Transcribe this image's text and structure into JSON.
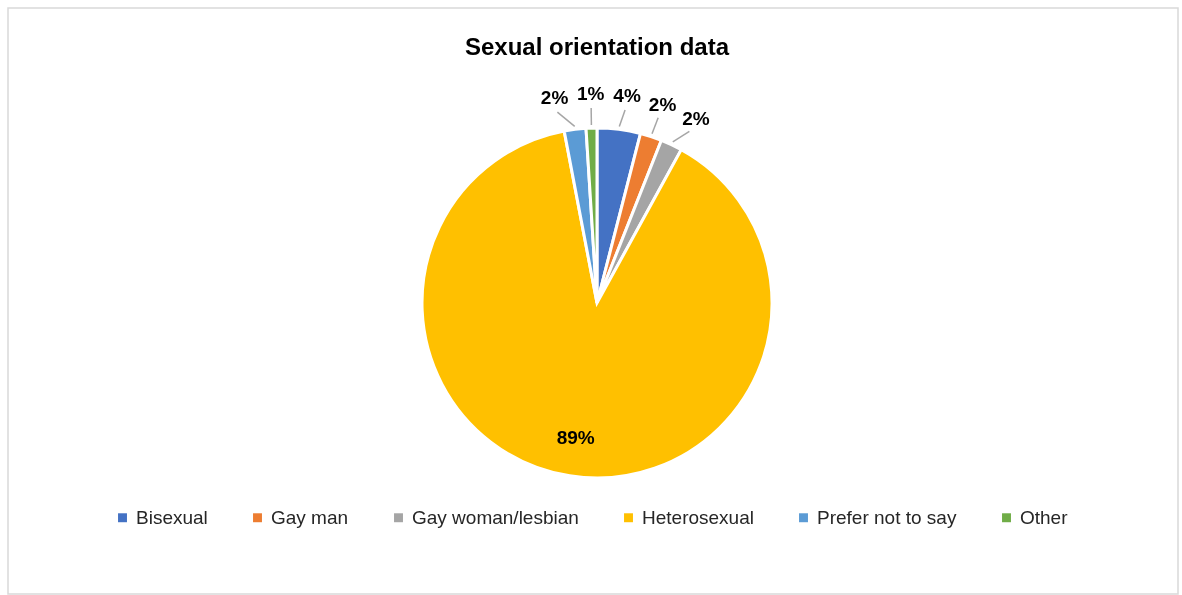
{
  "chart_data": {
    "type": "pie",
    "title": "Sexual orientation data",
    "categories": [
      "Bisexual",
      "Gay man",
      "Gay woman/lesbian",
      "Heterosexual",
      "Prefer not to say",
      "Other"
    ],
    "values": [
      4,
      2,
      2,
      89,
      2,
      1
    ],
    "colors": [
      "#4472c4",
      "#ed7d31",
      "#a5a5a5",
      "#ffc000",
      "#5b9bd5",
      "#70ad47"
    ],
    "value_labels": [
      "4%",
      "2%",
      "2%",
      "89%",
      "2%",
      "1%"
    ],
    "legend": "bottom"
  }
}
